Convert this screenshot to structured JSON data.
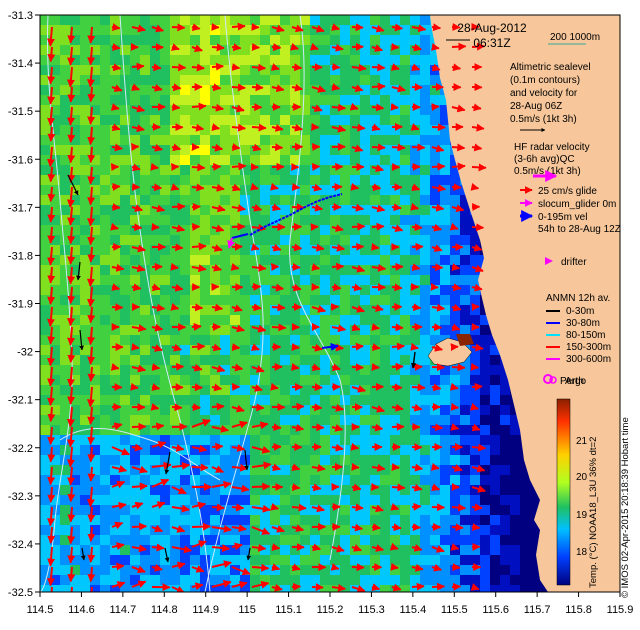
{
  "map": {
    "title_date": "28-Aug-2012",
    "title_time": "06:31Z",
    "scale_label": "200  1000m",
    "lon_ticks": [
      "114.5",
      "114.6",
      "114.7",
      "114.8",
      "114.9",
      "115",
      "115.1",
      "115.2",
      "115.3",
      "115.4",
      "115.5",
      "115.6",
      "115.7",
      "115.8",
      "115.9"
    ],
    "lat_ticks": [
      "-31.3",
      "-31.4",
      "-31.5",
      "-31.6",
      "-31.7",
      "-31.8",
      "-31.9",
      "-32",
      "-32.1",
      "-32.2",
      "-32.3",
      "-32.4",
      "-32.5"
    ],
    "lon_range": [
      114.5,
      115.9
    ],
    "lat_range": [
      -32.5,
      -31.3
    ],
    "place_label": "Perth",
    "colors": {
      "land": "#f7c79b",
      "cold": "#000080",
      "warm": "#ffff00",
      "hot": "#ff2000",
      "current_arrow": "#ff0000",
      "glider": "#0000ff",
      "drifter": "#ff00ff",
      "contour": "#cdeafc"
    }
  },
  "legend": {
    "altimetric_lines": [
      "Altimetric sealevel",
      "(0.1m contours)",
      "and velocity for",
      "28-Aug 06Z",
      "0.5m/s (1kt 3h)"
    ],
    "hf_lines": [
      "HF radar velocity",
      "(3-6h avg)QC",
      "0.5m/s (1kt 3h)"
    ],
    "glide_label": "25 cm/s glide",
    "slocum_label": "slocum_glider 0m",
    "vel_label": "0-195m vel",
    "period_label": "54h to 28-Aug 12Z",
    "drifter_label": "drifter",
    "anmn_title": "ANMN 12h av.",
    "anmn_items": [
      {
        "label": "0-30m",
        "color": "#000000"
      },
      {
        "label": "30-80m",
        "color": "#0000ff"
      },
      {
        "label": "80-150m",
        "color": "#00e0ff"
      },
      {
        "label": "150-300m",
        "color": "#ff0000"
      },
      {
        "label": "300-600m",
        "color": "#ff00ff"
      }
    ],
    "argo_label": "Argo"
  },
  "colorbar": {
    "ticks": [
      "21",
      "20",
      "19",
      "18"
    ],
    "label": "Temp. (°C) NOAA18_L3U 36% dt=2"
  },
  "credit": "© IMOS 02-Apr-2015 20:18:39 Hobart time"
}
